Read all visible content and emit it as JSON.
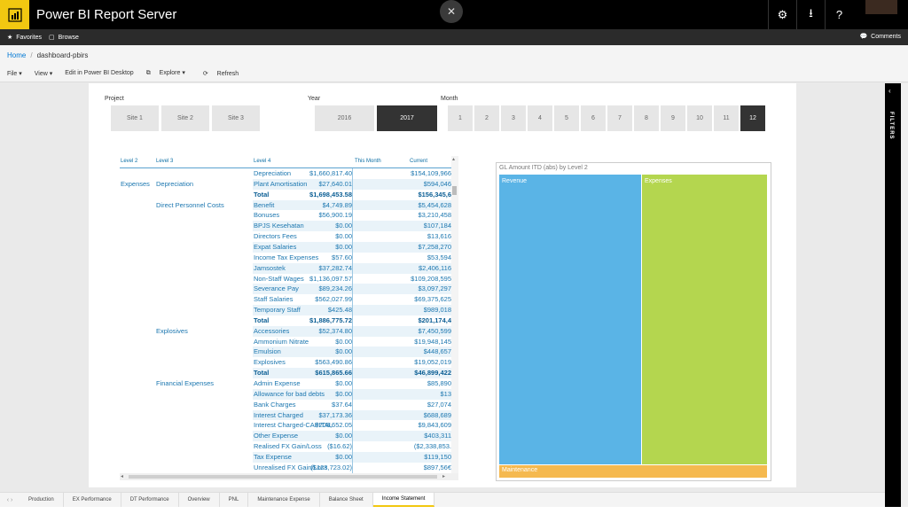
{
  "app": {
    "title": "Power BI Report Server"
  },
  "favorites_bar": {
    "favorites": "Favorites",
    "browse": "Browse",
    "comments": "Comments"
  },
  "breadcrumb": {
    "home": "Home",
    "current": "dashboard-pbirs"
  },
  "toolbar": {
    "file": "File ▾",
    "view": "View ▾",
    "edit": "Edit in Power BI Desktop",
    "explore": "Explore ▾",
    "refresh": "Refresh"
  },
  "slicers": {
    "project": {
      "title": "Project",
      "items": [
        "Site 1",
        "Site 2",
        "Site 3"
      ]
    },
    "year": {
      "title": "Year",
      "items": [
        "2016",
        "2017"
      ],
      "selected": "2017"
    },
    "month": {
      "title": "Month",
      "items": [
        "1",
        "2",
        "3",
        "4",
        "5",
        "6",
        "7",
        "8",
        "9",
        "10",
        "11",
        "12"
      ],
      "selected": "12"
    }
  },
  "matrix": {
    "headers": [
      "Level 2",
      "Level 3",
      "Level 4",
      "This Month",
      "Current"
    ],
    "rows": [
      {
        "l2": "",
        "l3": "",
        "l4": "Depreciation",
        "this_month": "$1,660,817.40",
        "current": "$154,109,966"
      },
      {
        "l2": "Expenses",
        "l3": "Depreciation",
        "l4": "Plant Amortisation",
        "this_month": "$27,640.01",
        "current": "$594,046"
      },
      {
        "l2": "",
        "l3": "",
        "l4": "Total",
        "this_month": "$1,698,453.58",
        "current": "$156,345,6",
        "total": true
      },
      {
        "l2": "",
        "l3": "Direct Personnel Costs",
        "l4": "Benefit",
        "this_month": "$4,749.89",
        "current": "$5,454,628"
      },
      {
        "l2": "",
        "l3": "",
        "l4": "Bonuses",
        "this_month": "$56,900.19",
        "current": "$3,210,458"
      },
      {
        "l2": "",
        "l3": "",
        "l4": "BPJS Kesehatan",
        "this_month": "$0.00",
        "current": "$107,184"
      },
      {
        "l2": "",
        "l3": "",
        "l4": "Directors Fees",
        "this_month": "$0.00",
        "current": "$13,616"
      },
      {
        "l2": "",
        "l3": "",
        "l4": "Expat Salaries",
        "this_month": "$0.00",
        "current": "$7,258,270"
      },
      {
        "l2": "",
        "l3": "",
        "l4": "Income Tax Expenses",
        "this_month": "$57.60",
        "current": "$53,594"
      },
      {
        "l2": "",
        "l3": "",
        "l4": "Jamsostek",
        "this_month": "$37,282.74",
        "current": "$2,406,116"
      },
      {
        "l2": "",
        "l3": "",
        "l4": "Non-Staff Wages",
        "this_month": "$1,136,097.57",
        "current": "$109,208,595"
      },
      {
        "l2": "",
        "l3": "",
        "l4": "Severance Pay",
        "this_month": "$89,234.26",
        "current": "$3,097,297"
      },
      {
        "l2": "",
        "l3": "",
        "l4": "Staff Salaries",
        "this_month": "$562,027.99",
        "current": "$69,375,625"
      },
      {
        "l2": "",
        "l3": "",
        "l4": "Temporary Staff",
        "this_month": "$425.48",
        "current": "$989,018"
      },
      {
        "l2": "",
        "l3": "",
        "l4": "Total",
        "this_month": "$1,886,775.72",
        "current": "$201,174,4",
        "total": true
      },
      {
        "l2": "",
        "l3": "Explosives",
        "l4": "Accessories",
        "this_month": "$52,374.80",
        "current": "$7,450,599"
      },
      {
        "l2": "",
        "l3": "",
        "l4": "Ammonium Nitrate",
        "this_month": "$0.00",
        "current": "$19,948,145"
      },
      {
        "l2": "",
        "l3": "",
        "l4": "Emulsion",
        "this_month": "$0.00",
        "current": "$448,657"
      },
      {
        "l2": "",
        "l3": "",
        "l4": "Explosives",
        "this_month": "$563,490.86",
        "current": "$19,052,019"
      },
      {
        "l2": "",
        "l3": "",
        "l4": "Total",
        "this_month": "$615,865.66",
        "current": "$46,899,422",
        "total": true
      },
      {
        "l2": "",
        "l3": "Financial Expenses",
        "l4": "Admin Expense",
        "this_month": "$0.00",
        "current": "$85,890"
      },
      {
        "l2": "",
        "l3": "",
        "l4": "Allowance for bad debts",
        "this_month": "$0.00",
        "current": "$13"
      },
      {
        "l2": "",
        "l3": "",
        "l4": "Bank Charges",
        "this_month": "$37.64",
        "current": "$27,074"
      },
      {
        "l2": "",
        "l3": "",
        "l4": "Interest Charged",
        "this_month": "$37,173.36",
        "current": "$688,689"
      },
      {
        "l2": "",
        "l3": "",
        "l4": "Interest Charged-CAPITAL",
        "this_month": "$208,652.05",
        "current": "$9,843,609"
      },
      {
        "l2": "",
        "l3": "",
        "l4": "Other Expense",
        "this_month": "$0.00",
        "current": "$403,311"
      },
      {
        "l2": "",
        "l3": "",
        "l4": "Realised FX Gain/Loss",
        "this_month": "($16.62)",
        "current": "($2,338,853."
      },
      {
        "l2": "",
        "l3": "",
        "l4": "Tax Expense",
        "this_month": "$0.00",
        "current": "$119,150"
      },
      {
        "l2": "",
        "l3": "",
        "l4": "Unrealised FX Gain/Loss",
        "this_month": "($123,723.02)",
        "current": "$897,56€"
      }
    ]
  },
  "treemap": {
    "title": "GL Amount ITD (abs) by Level 2",
    "segments": [
      {
        "label": "Revenue",
        "color": "#5ab4e6"
      },
      {
        "label": "Expenses",
        "color": "#b4d64f"
      },
      {
        "label": "Maintenance",
        "color": "#f5b94f"
      }
    ]
  },
  "tabs": {
    "items": [
      "Production",
      "EX Performance",
      "DT Performance",
      "Overview",
      "PNL",
      "Maintenance Expense",
      "Balance Sheet",
      "Income Statement"
    ],
    "active": "Income Statement"
  },
  "filters_pane": {
    "label": "FILTERS"
  },
  "colors": {
    "accent": "#f2c811",
    "matrix_text": "#1c77b0",
    "selected_tile": "#333333"
  }
}
